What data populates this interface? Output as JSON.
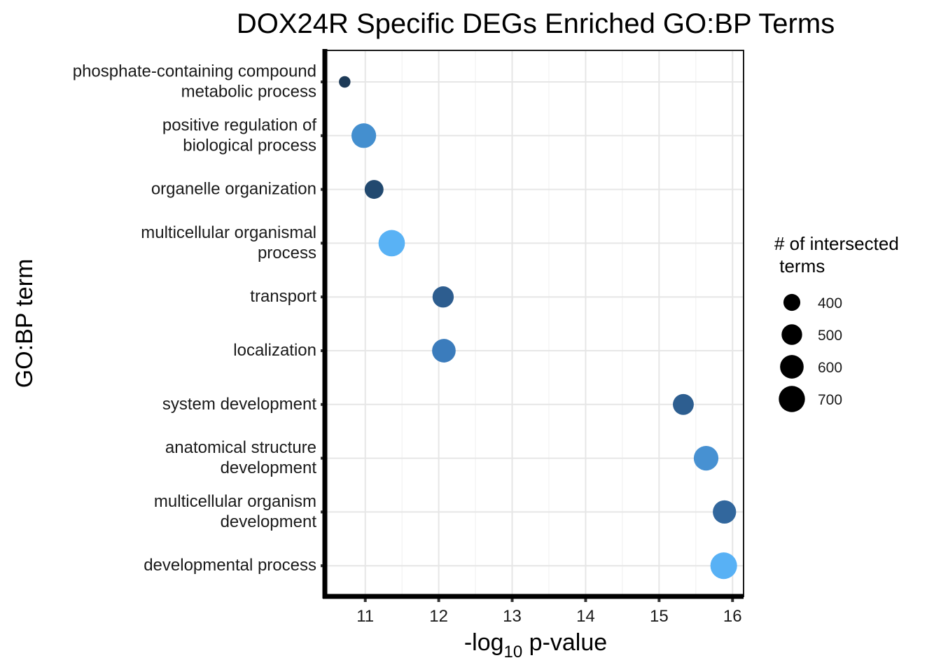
{
  "chart_data": {
    "type": "scatter",
    "title": "DOX24R Specific DEGs Enriched GO:BP Terms",
    "xlabel_main": "-log",
    "xlabel_sub": "10",
    "xlabel_rest": " p-value",
    "ylabel": "GO:BP term",
    "xlim": [
      10.45,
      16.15
    ],
    "xticks": [
      "11",
      "12",
      "13",
      "14",
      "15",
      "16"
    ],
    "points": [
      {
        "term_lines": [
          "phosphate-containing compound",
          "metabolic process"
        ],
        "x": 10.72,
        "size": 300,
        "color": "#1d3a57"
      },
      {
        "term_lines": [
          "positive regulation of",
          "biological process"
        ],
        "x": 10.98,
        "size": 640,
        "color": "#448fcf"
      },
      {
        "term_lines": [
          "organelle organization"
        ],
        "x": 11.12,
        "size": 450,
        "color": "#22496f"
      },
      {
        "term_lines": [
          "multicellular organismal",
          "process"
        ],
        "x": 11.36,
        "size": 710,
        "color": "#59b2f5"
      },
      {
        "term_lines": [
          "transport"
        ],
        "x": 12.06,
        "size": 520,
        "color": "#2d5d8f"
      },
      {
        "term_lines": [
          "localization"
        ],
        "x": 12.07,
        "size": 600,
        "color": "#3b7cbc"
      },
      {
        "term_lines": [
          "system development"
        ],
        "x": 15.33,
        "size": 510,
        "color": "#2d5e90"
      },
      {
        "term_lines": [
          "anatomical structure",
          "development"
        ],
        "x": 15.64,
        "size": 640,
        "color": "#4791d2"
      },
      {
        "term_lines": [
          "multicellular organism",
          "development"
        ],
        "x": 15.89,
        "size": 590,
        "color": "#32679d"
      },
      {
        "term_lines": [
          "developmental process"
        ],
        "x": 15.88,
        "size": 720,
        "color": "#58b1f5"
      }
    ],
    "legend": {
      "title_lines": [
        "# of intersected",
        " terms"
      ],
      "position": "right",
      "entries": [
        {
          "label": "400",
          "size": 400
        },
        {
          "label": "500",
          "size": 500
        },
        {
          "label": "600",
          "size": 600
        },
        {
          "label": "700",
          "size": 700
        }
      ]
    }
  }
}
